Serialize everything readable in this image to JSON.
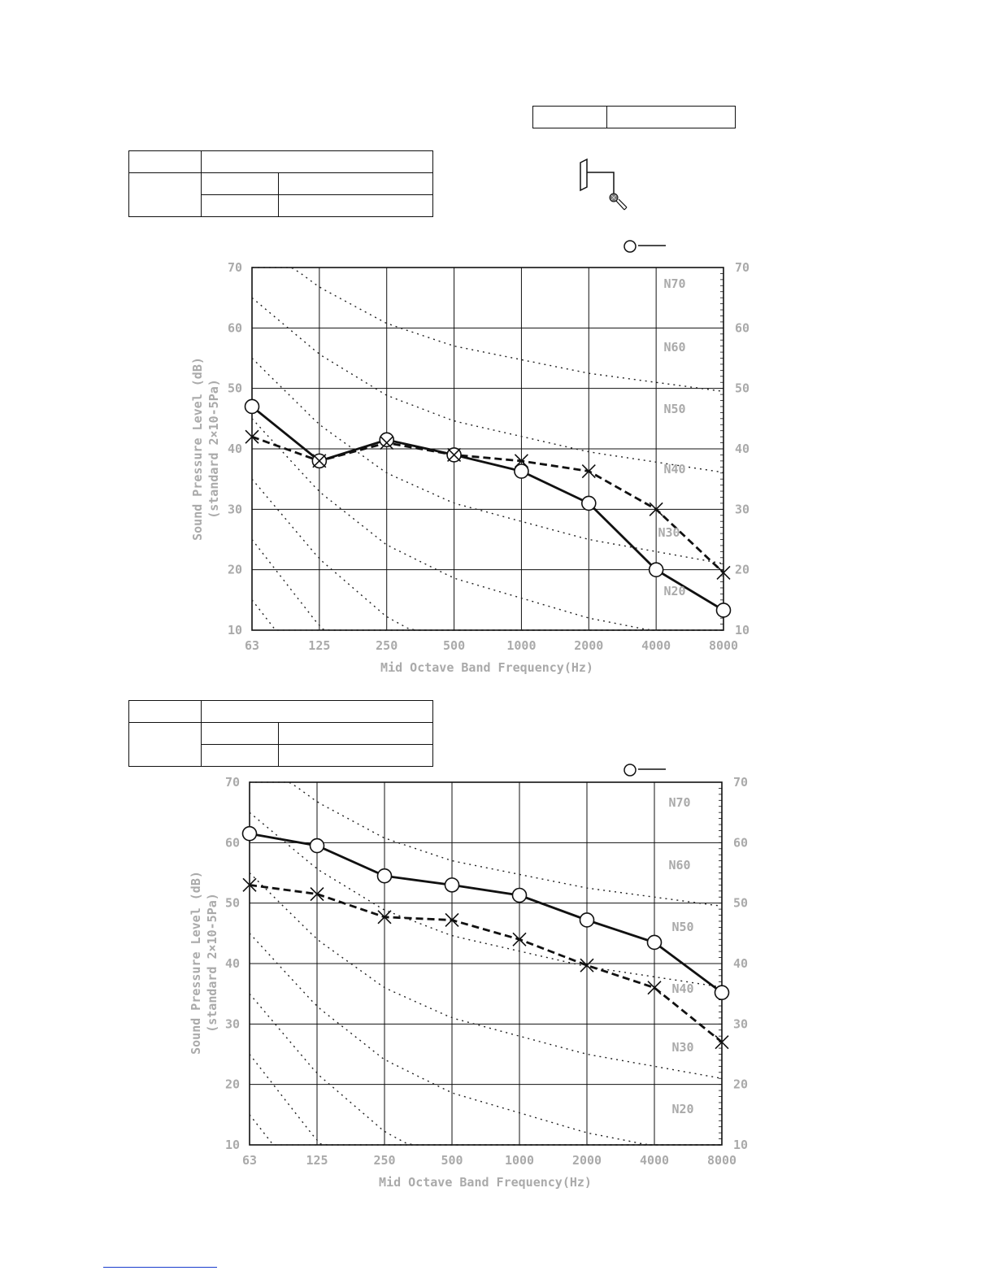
{
  "colors": {
    "ink": "#111111",
    "label_gray": "#aaaaaa",
    "footer_link": "#1a3ccc"
  },
  "icons": {
    "microphone": "microphone-icon",
    "outdoor_unit": "unit-outline-icon"
  },
  "legend": {
    "circle_marker": "circle-marker-icon"
  },
  "charts": [
    {
      "ylabel_line1": "Sound Pressure Level (dB)",
      "ylabel_line2": "(standard 2×10-5Pa)",
      "xlabel": "Mid Octave Band Frequency(Hz)",
      "y_ticks": [
        "70",
        "60",
        "50",
        "40",
        "30",
        "20",
        "10"
      ],
      "x_ticks": [
        "63",
        "125",
        "250",
        "500",
        "1000",
        "2000",
        "4000",
        "8000"
      ],
      "nc_labels": [
        "N70",
        "N60",
        "N50",
        "N40",
        "N30",
        "N20"
      ]
    },
    {
      "ylabel_line1": "Sound Pressure Level (dB)",
      "ylabel_line2": "(standard 2×10-5Pa)",
      "xlabel": "Mid Octave Band Frequency(Hz)",
      "y_ticks": [
        "70",
        "60",
        "50",
        "40",
        "30",
        "20",
        "10"
      ],
      "x_ticks": [
        "63",
        "125",
        "250",
        "500",
        "1000",
        "2000",
        "4000",
        "8000"
      ],
      "nc_labels": [
        "N70",
        "N60",
        "N50",
        "N40",
        "N30",
        "N20"
      ]
    }
  ],
  "chart_data": [
    {
      "type": "line",
      "xlabel": "Mid Octave Band Frequency(Hz)",
      "ylabel": "Sound Pressure Level (dB) (standard 2×10-5Pa)",
      "categories": [
        "63",
        "125",
        "250",
        "500",
        "1000",
        "2000",
        "4000",
        "8000"
      ],
      "ylim": [
        10,
        70
      ],
      "grid": true,
      "series": [
        {
          "marker": "circle",
          "line": "solid",
          "values": [
            47,
            38,
            41.5,
            39,
            36.3,
            31,
            20,
            13.3
          ]
        },
        {
          "marker": "cross",
          "line": "dashed",
          "values": [
            42,
            38,
            41,
            39,
            38,
            36.3,
            30,
            19.5
          ]
        }
      ],
      "nc_curves": [
        "N70",
        "N60",
        "N50",
        "N40",
        "N30",
        "N20"
      ]
    },
    {
      "type": "line",
      "xlabel": "Mid Octave Band Frequency(Hz)",
      "ylabel": "Sound Pressure Level (dB) (standard 2×10-5Pa)",
      "categories": [
        "63",
        "125",
        "250",
        "500",
        "1000",
        "2000",
        "4000",
        "8000"
      ],
      "ylim": [
        10,
        70
      ],
      "grid": true,
      "series": [
        {
          "marker": "circle",
          "line": "solid",
          "values": [
            61.5,
            59.5,
            54.5,
            53,
            51.3,
            47.2,
            43.5,
            35.2
          ]
        },
        {
          "marker": "cross",
          "line": "dashed",
          "values": [
            53,
            51.5,
            47.7,
            47.2,
            44,
            39.7,
            36,
            27
          ]
        }
      ],
      "nc_curves": [
        "N70",
        "N60",
        "N50",
        "N40",
        "N30",
        "N20"
      ]
    }
  ]
}
